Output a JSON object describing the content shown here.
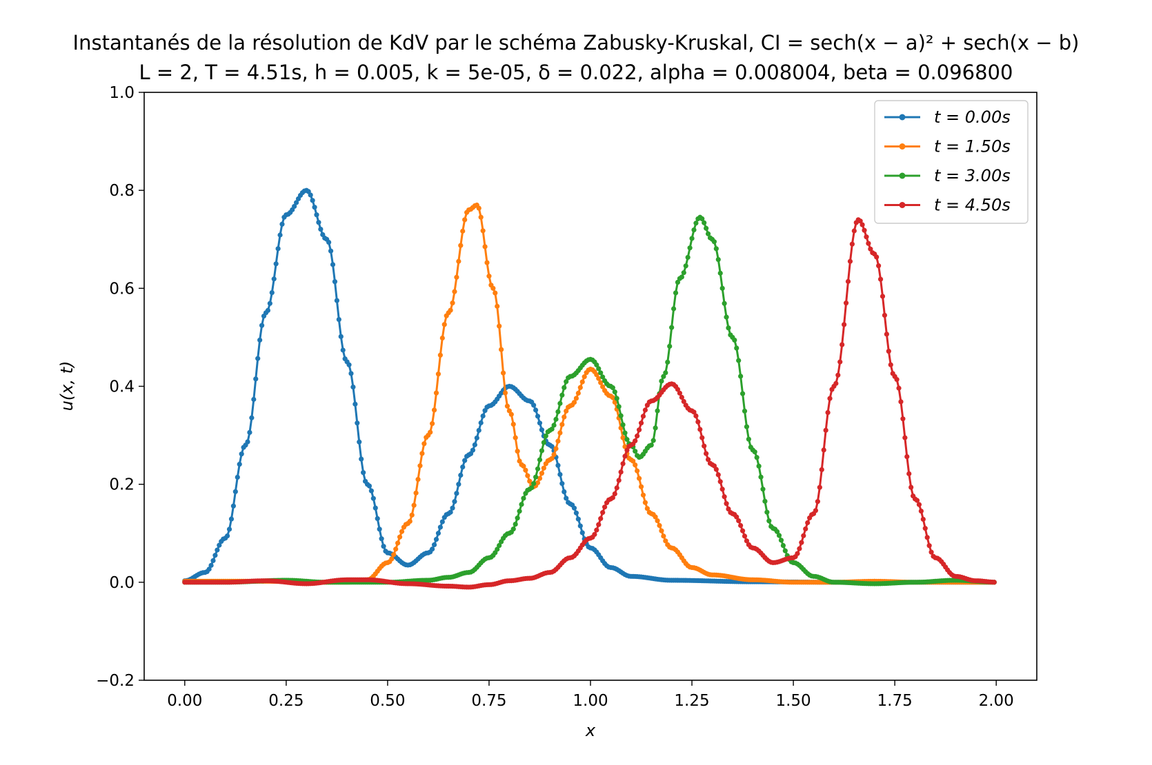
{
  "chart_data": {
    "type": "line",
    "title": "Instantanés de la résolution de KdV par le schéma Zabusky-Kruskal, CI = sech(x − a)² + sech(x − b)",
    "subtitle": "L = 2, T = 4.51s, h = 0.005, k = 5e-05, δ = 0.022,  alpha = 0.008004, beta = 0.096800",
    "xlabel": "x",
    "ylabel": "u(x, t)",
    "xlim": [
      -0.1,
      2.1
    ],
    "ylim": [
      -0.2,
      1.0
    ],
    "xticks": [
      "0.00",
      "0.25",
      "0.50",
      "0.75",
      "1.00",
      "1.25",
      "1.50",
      "1.75",
      "2.00"
    ],
    "yticks": [
      "−0.2",
      "0.0",
      "0.2",
      "0.4",
      "0.6",
      "0.8",
      "1.0"
    ],
    "grid": false,
    "legend_position": "top-right",
    "x_range": [
      0.0,
      1.995
    ],
    "x_step": 0.005,
    "series": [
      {
        "name": "t = 0.00s",
        "color": "#1f77b4",
        "points": [
          [
            0.0,
            0.003
          ],
          [
            0.05,
            0.02
          ],
          [
            0.1,
            0.09
          ],
          [
            0.15,
            0.28
          ],
          [
            0.2,
            0.55
          ],
          [
            0.25,
            0.75
          ],
          [
            0.3,
            0.8
          ],
          [
            0.35,
            0.7
          ],
          [
            0.4,
            0.45
          ],
          [
            0.45,
            0.2
          ],
          [
            0.5,
            0.06
          ],
          [
            0.55,
            0.035
          ],
          [
            0.6,
            0.06
          ],
          [
            0.65,
            0.14
          ],
          [
            0.7,
            0.26
          ],
          [
            0.75,
            0.36
          ],
          [
            0.8,
            0.4
          ],
          [
            0.85,
            0.37
          ],
          [
            0.9,
            0.28
          ],
          [
            0.95,
            0.16
          ],
          [
            1.0,
            0.07
          ],
          [
            1.05,
            0.03
          ],
          [
            1.1,
            0.012
          ],
          [
            1.2,
            0.004
          ],
          [
            1.4,
            0.001
          ],
          [
            1.6,
            0.0
          ],
          [
            2.0,
            0.0
          ]
        ]
      },
      {
        "name": "t = 1.50s",
        "color": "#ff7f0e",
        "points": [
          [
            0.0,
            0.002
          ],
          [
            0.2,
            0.002
          ],
          [
            0.3,
            0.0
          ],
          [
            0.4,
            0.0
          ],
          [
            0.45,
            0.005
          ],
          [
            0.5,
            0.04
          ],
          [
            0.55,
            0.12
          ],
          [
            0.6,
            0.3
          ],
          [
            0.65,
            0.55
          ],
          [
            0.7,
            0.76
          ],
          [
            0.72,
            0.77
          ],
          [
            0.76,
            0.6
          ],
          [
            0.8,
            0.35
          ],
          [
            0.83,
            0.24
          ],
          [
            0.86,
            0.195
          ],
          [
            0.9,
            0.25
          ],
          [
            0.95,
            0.36
          ],
          [
            1.0,
            0.435
          ],
          [
            1.05,
            0.38
          ],
          [
            1.1,
            0.25
          ],
          [
            1.15,
            0.14
          ],
          [
            1.2,
            0.07
          ],
          [
            1.25,
            0.03
          ],
          [
            1.3,
            0.015
          ],
          [
            1.4,
            0.005
          ],
          [
            1.5,
            0.0
          ],
          [
            1.6,
            0.0
          ],
          [
            1.7,
            0.002
          ],
          [
            1.8,
            0.0
          ],
          [
            2.0,
            0.0
          ]
        ]
      },
      {
        "name": "t = 3.00s",
        "color": "#2ca02c",
        "points": [
          [
            0.0,
            0.0
          ],
          [
            0.1,
            0.0
          ],
          [
            0.25,
            0.004
          ],
          [
            0.35,
            0.0
          ],
          [
            0.5,
            0.0
          ],
          [
            0.6,
            0.004
          ],
          [
            0.65,
            0.01
          ],
          [
            0.7,
            0.02
          ],
          [
            0.75,
            0.05
          ],
          [
            0.8,
            0.1
          ],
          [
            0.85,
            0.19
          ],
          [
            0.9,
            0.31
          ],
          [
            0.95,
            0.42
          ],
          [
            1.0,
            0.455
          ],
          [
            1.05,
            0.4
          ],
          [
            1.1,
            0.28
          ],
          [
            1.12,
            0.255
          ],
          [
            1.15,
            0.28
          ],
          [
            1.18,
            0.42
          ],
          [
            1.22,
            0.62
          ],
          [
            1.27,
            0.745
          ],
          [
            1.3,
            0.7
          ],
          [
            1.35,
            0.5
          ],
          [
            1.4,
            0.27
          ],
          [
            1.45,
            0.11
          ],
          [
            1.5,
            0.04
          ],
          [
            1.55,
            0.012
          ],
          [
            1.6,
            0.0
          ],
          [
            1.7,
            -0.003
          ],
          [
            1.8,
            0.0
          ],
          [
            1.9,
            0.004
          ],
          [
            2.0,
            0.0
          ]
        ]
      },
      {
        "name": "t = 4.50s",
        "color": "#d62728",
        "points": [
          [
            0.0,
            0.0
          ],
          [
            0.1,
            0.0
          ],
          [
            0.2,
            0.003
          ],
          [
            0.3,
            -0.003
          ],
          [
            0.4,
            0.005
          ],
          [
            0.45,
            0.005
          ],
          [
            0.55,
            -0.003
          ],
          [
            0.65,
            -0.008
          ],
          [
            0.7,
            -0.01
          ],
          [
            0.75,
            -0.005
          ],
          [
            0.8,
            0.003
          ],
          [
            0.85,
            0.008
          ],
          [
            0.9,
            0.02
          ],
          [
            0.95,
            0.05
          ],
          [
            1.0,
            0.09
          ],
          [
            1.05,
            0.17
          ],
          [
            1.1,
            0.28
          ],
          [
            1.15,
            0.37
          ],
          [
            1.2,
            0.405
          ],
          [
            1.25,
            0.35
          ],
          [
            1.3,
            0.24
          ],
          [
            1.35,
            0.14
          ],
          [
            1.4,
            0.07
          ],
          [
            1.45,
            0.04
          ],
          [
            1.5,
            0.05
          ],
          [
            1.55,
            0.14
          ],
          [
            1.6,
            0.4
          ],
          [
            1.66,
            0.74
          ],
          [
            1.7,
            0.67
          ],
          [
            1.75,
            0.42
          ],
          [
            1.8,
            0.17
          ],
          [
            1.85,
            0.05
          ],
          [
            1.9,
            0.012
          ],
          [
            1.95,
            0.003
          ],
          [
            2.0,
            0.0
          ]
        ]
      }
    ]
  }
}
